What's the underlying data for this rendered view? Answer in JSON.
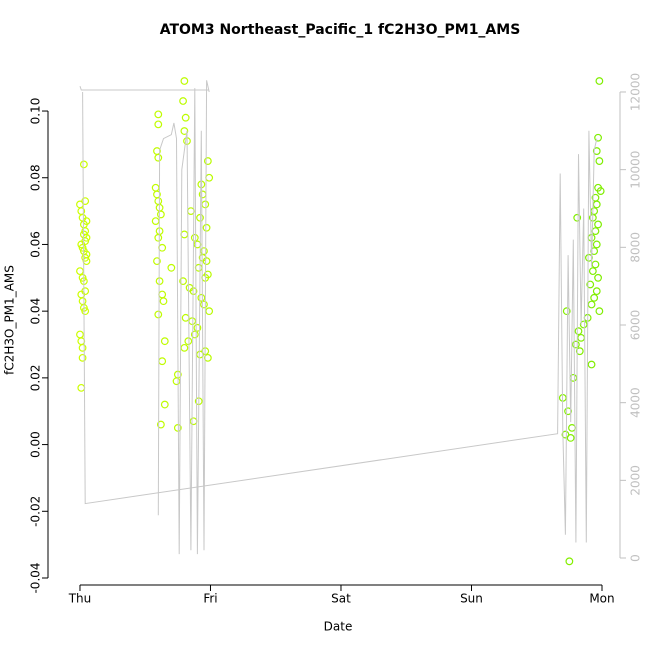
{
  "chart_data": {
    "type": "scatter",
    "title": "ATOM3 Northeast_Pacific_1 fC2H3O_PM1_AMS",
    "x_label": "Date",
    "y_label": "fC2H3O_PM1_AMS",
    "xlim": [
      -0.245,
      4.138
    ],
    "xticks": [
      {
        "value": 0,
        "label": "Thu"
      },
      {
        "value": 1,
        "label": "Fri"
      },
      {
        "value": 2,
        "label": "Sat"
      },
      {
        "value": 3,
        "label": "Sun"
      },
      {
        "value": 4,
        "label": "Mon"
      }
    ],
    "ylim": [
      -0.0421,
      0.1159
    ],
    "yticks": [
      -0.04,
      -0.02,
      {
        "value": 0,
        "label": "0.00"
      },
      0.02,
      0.04,
      0.06,
      0.08,
      {
        "value": 0.1,
        "label": "0.10"
      }
    ],
    "y2lim": [
      -695,
      12875
    ],
    "y2ticks": [
      0,
      2000,
      4000,
      6000,
      8000,
      10000,
      12000
    ],
    "y2_color": "#c0c0c0",
    "series": [
      {
        "type": "scatter",
        "colors": [
          "#ccff00",
          "#7fee00"
        ],
        "x": [
          0.0,
          0.01,
          0.02,
          0.03,
          0.04,
          0.05,
          0.01,
          0.02,
          0.03,
          0.04,
          0.05,
          0.0,
          0.02,
          0.03,
          0.04,
          0.01,
          0.02,
          0.03,
          0.04,
          0.0,
          0.01,
          0.02,
          0.02,
          0.01,
          0.03,
          0.04,
          0.05,
          0.03,
          0.04,
          0.05,
          0.6,
          0.6,
          0.59,
          0.6,
          0.58,
          0.59,
          0.6,
          0.61,
          0.62,
          0.58,
          0.61,
          0.6,
          0.63,
          0.59,
          0.7,
          0.61,
          0.63,
          0.64,
          0.6,
          0.65,
          0.63,
          0.75,
          0.74,
          0.65,
          0.62,
          0.75,
          0.8,
          0.79,
          0.81,
          0.8,
          0.82,
          0.98,
          0.99,
          0.93,
          0.94,
          0.96,
          0.85,
          0.92,
          0.97,
          0.8,
          0.88,
          0.9,
          0.95,
          0.94,
          0.97,
          0.91,
          0.98,
          0.96,
          0.79,
          0.84,
          0.87,
          0.93,
          0.95,
          0.99,
          0.81,
          0.86,
          0.9,
          0.88,
          0.83,
          0.8,
          0.96,
          0.92,
          0.98,
          0.91,
          0.87,
          3.98,
          3.97,
          3.96,
          3.98,
          3.97,
          3.99,
          3.95,
          3.96,
          3.94,
          3.93,
          3.97,
          3.95,
          3.92,
          3.96,
          3.94,
          3.9,
          3.95,
          3.93,
          3.97,
          3.91,
          3.96,
          3.94,
          3.92,
          3.98,
          3.89,
          3.86,
          3.82,
          3.84,
          3.8,
          3.83,
          3.92,
          3.78,
          3.7,
          3.74,
          3.77,
          3.72,
          3.76,
          3.75,
          3.81,
          3.73
        ],
        "values": [
          0.072,
          0.07,
          0.068,
          0.066,
          0.064,
          0.062,
          0.06,
          0.059,
          0.058,
          0.056,
          0.055,
          0.052,
          0.05,
          0.049,
          0.046,
          0.045,
          0.043,
          0.041,
          0.04,
          0.033,
          0.031,
          0.029,
          0.026,
          0.017,
          0.084,
          0.073,
          0.067,
          0.063,
          0.061,
          0.057,
          0.099,
          0.096,
          0.088,
          0.086,
          0.077,
          0.075,
          0.073,
          0.071,
          0.069,
          0.067,
          0.064,
          0.062,
          0.059,
          0.055,
          0.053,
          0.049,
          0.045,
          0.043,
          0.039,
          0.031,
          0.025,
          0.021,
          0.019,
          0.012,
          0.006,
          0.005,
          0.109,
          0.103,
          0.098,
          0.094,
          0.091,
          0.085,
          0.08,
          0.078,
          0.075,
          0.072,
          0.07,
          0.068,
          0.065,
          0.063,
          0.062,
          0.06,
          0.058,
          0.056,
          0.055,
          0.053,
          0.051,
          0.05,
          0.049,
          0.047,
          0.046,
          0.044,
          0.042,
          0.04,
          0.038,
          0.037,
          0.035,
          0.033,
          0.031,
          0.029,
          0.028,
          0.027,
          0.026,
          0.013,
          0.007,
          0.109,
          0.092,
          0.088,
          0.085,
          0.077,
          0.076,
          0.074,
          0.072,
          0.07,
          0.068,
          0.066,
          0.064,
          0.062,
          0.06,
          0.058,
          0.056,
          0.054,
          0.052,
          0.05,
          0.048,
          0.046,
          0.044,
          0.042,
          0.04,
          0.038,
          0.036,
          0.034,
          0.032,
          0.03,
          0.028,
          0.024,
          0.02,
          0.014,
          0.01,
          0.005,
          0.003,
          0.002,
          -0.035,
          0.068,
          0.04
        ]
      },
      {
        "type": "line",
        "axis": "y2",
        "color": "#c8c8c8",
        "x": [
          0.0,
          0.01,
          0.99,
          null,
          0.6,
          0.61,
          0.64,
          0.7,
          0.72,
          0.74,
          0.76,
          0.78,
          0.82,
          0.85,
          0.88,
          0.9,
          0.93,
          0.95,
          0.97,
          0.99,
          null,
          0.02,
          0.04,
          3.66,
          3.68,
          3.7,
          3.72,
          3.74,
          3.76,
          3.78,
          3.8,
          3.82,
          3.84,
          3.86,
          3.88,
          3.9,
          3.92,
          3.94,
          3.96
        ],
        "values": [
          12150,
          12050,
          12050,
          null,
          1100,
          10500,
          10800,
          10900,
          11200,
          10800,
          100,
          10000,
          11000,
          200,
          12100,
          100,
          11000,
          200,
          12300,
          12000,
          null,
          12000,
          1400,
          3200,
          9900,
          3300,
          600,
          7800,
          3500,
          8200,
          400,
          10400,
          6000,
          9000,
          400,
          11000,
          7500,
          10500,
          10800
        ]
      }
    ]
  }
}
